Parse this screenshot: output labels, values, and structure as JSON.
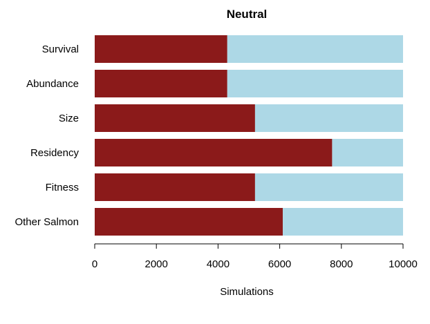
{
  "chart_data": {
    "type": "bar",
    "orientation": "horizontal",
    "stacked": true,
    "title": "Neutral",
    "xlabel": "Simulations",
    "ylabel": "",
    "xlim": [
      0,
      10000
    ],
    "x_ticks": [
      0,
      2000,
      4000,
      6000,
      8000,
      10000
    ],
    "categories": [
      "Survival",
      "Abundance",
      "Size",
      "Residency",
      "Fitness",
      "Other Salmon"
    ],
    "series": [
      {
        "values": [
          4300,
          4300,
          5200,
          7700,
          5200,
          6100
        ],
        "color": "#8b1a1a"
      },
      {
        "values": [
          5700,
          5700,
          4800,
          2300,
          4800,
          3900
        ],
        "color": "#add8e6"
      }
    ],
    "grid": false,
    "legend": "none"
  }
}
